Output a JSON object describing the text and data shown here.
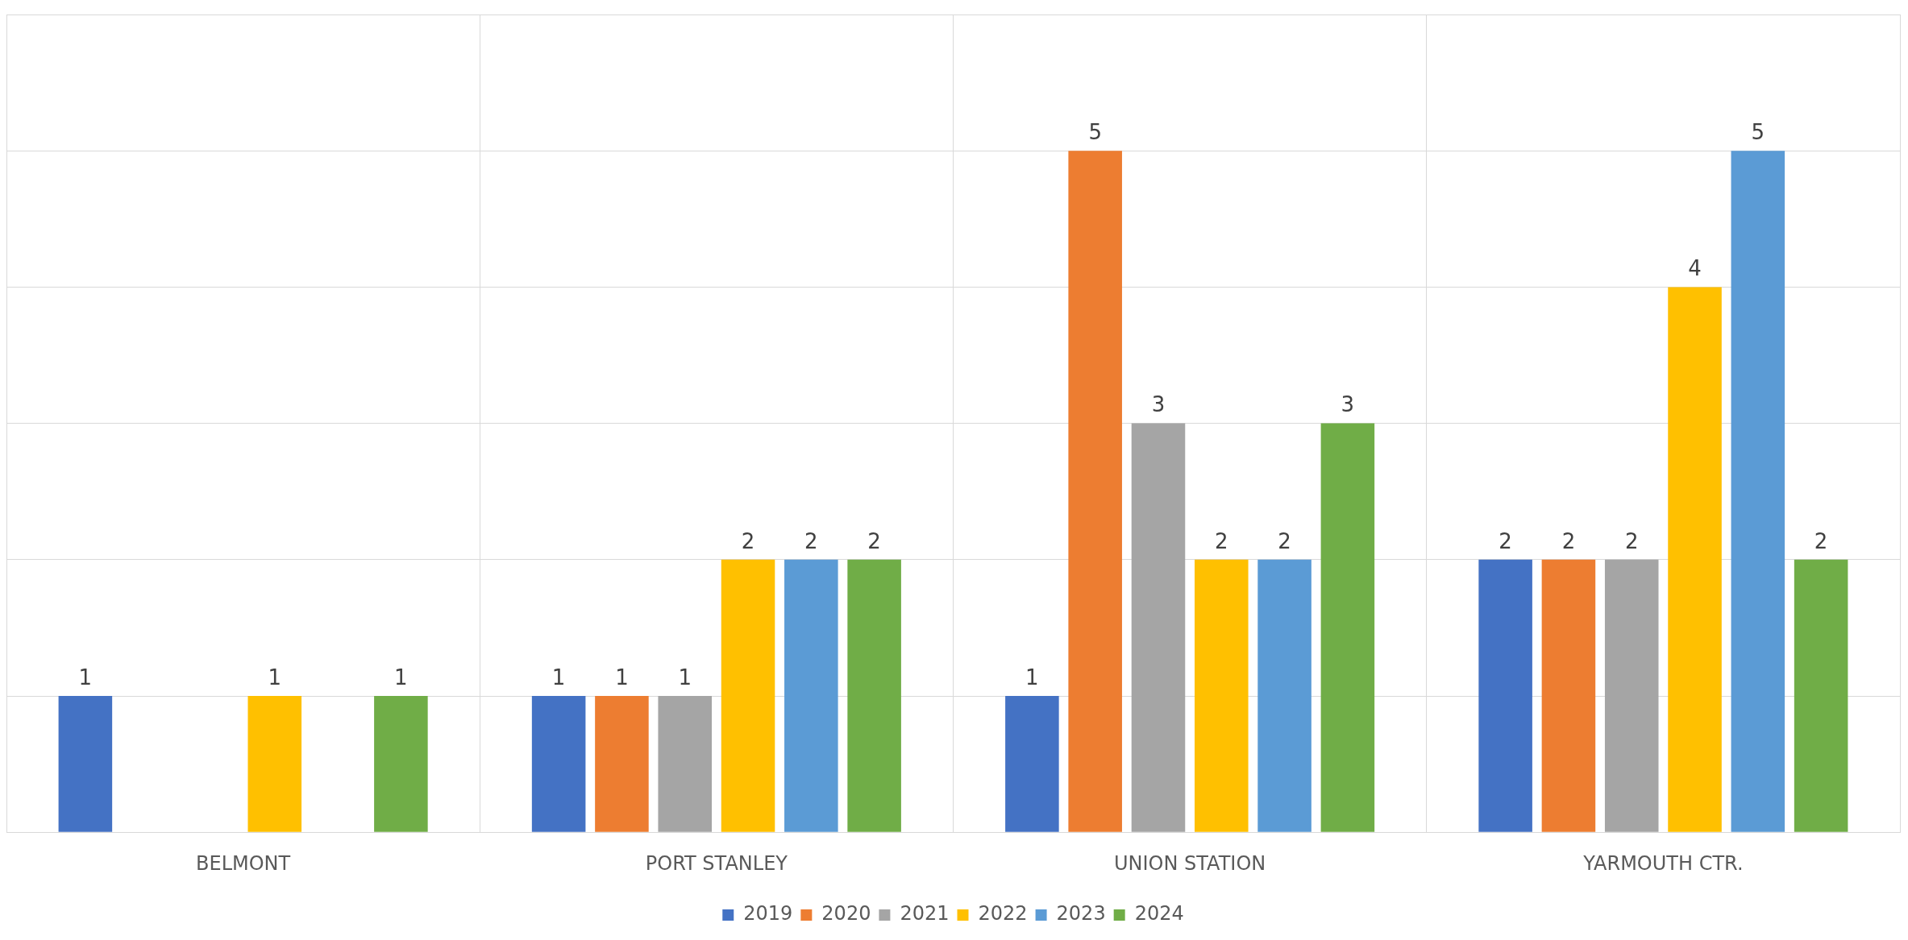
{
  "chart_data": {
    "type": "bar",
    "categories": [
      "BELMONT",
      "PORT STANLEY",
      "UNION STATION",
      "YARMOUTH CTR."
    ],
    "series": [
      {
        "name": "2019",
        "color": "#4472c4",
        "values": [
          1,
          1,
          1,
          2
        ]
      },
      {
        "name": "2020",
        "color": "#ed7d31",
        "values": [
          null,
          1,
          5,
          2
        ]
      },
      {
        "name": "2021",
        "color": "#a5a5a5",
        "values": [
          null,
          1,
          3,
          2
        ]
      },
      {
        "name": "2022",
        "color": "#ffc000",
        "values": [
          1,
          2,
          2,
          4
        ]
      },
      {
        "name": "2023",
        "color": "#5b9bd5",
        "values": [
          null,
          2,
          2,
          5
        ]
      },
      {
        "name": "2024",
        "color": "#70ad47",
        "values": [
          1,
          2,
          3,
          2
        ]
      }
    ],
    "ylim": [
      0,
      6
    ],
    "yticks": [
      {
        "value": 0,
        "label": null
      },
      {
        "value": 1,
        "label": null
      },
      {
        "value": 2,
        "label": null
      },
      {
        "value": 3,
        "label": null
      },
      {
        "value": 4,
        "label": null
      },
      {
        "value": 5,
        "label": null
      },
      {
        "value": 6,
        "label": null
      }
    ],
    "tick_labels": "x",
    "grid": true,
    "legend": "bottom",
    "data_labels": true
  }
}
